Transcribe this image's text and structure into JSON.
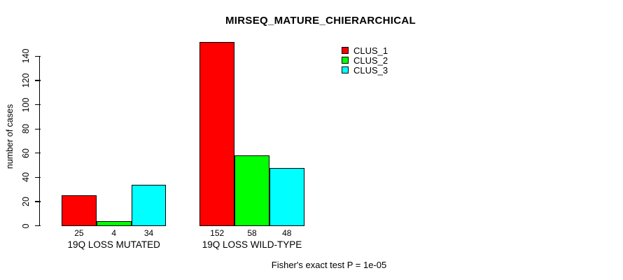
{
  "chart_data": {
    "type": "bar",
    "title": "MIRSEQ_MATURE_CHIERARCHICAL",
    "ylabel": "number of cases",
    "xlabel": "",
    "categories": [
      "19Q LOSS MUTATED",
      "19Q LOSS WILD-TYPE"
    ],
    "series": [
      {
        "name": "CLUS_1",
        "color": "#ff0000",
        "values": [
          25,
          152
        ]
      },
      {
        "name": "CLUS_2",
        "color": "#00ff00",
        "values": [
          4,
          58
        ]
      },
      {
        "name": "CLUS_3",
        "color": "#00ffff",
        "values": [
          34,
          48
        ]
      }
    ],
    "bar_value_labels": [
      [
        25,
        4,
        34
      ],
      [
        152,
        58,
        48
      ]
    ],
    "yticks": [
      0,
      20,
      40,
      60,
      80,
      100,
      120,
      140
    ],
    "ylim": [
      0,
      152
    ],
    "grid": false,
    "legend_position": "top-right",
    "footnote": "Fisher's exact test P = 1e-05",
    "axis_color": "#000000",
    "background_color": "#ffffff"
  }
}
